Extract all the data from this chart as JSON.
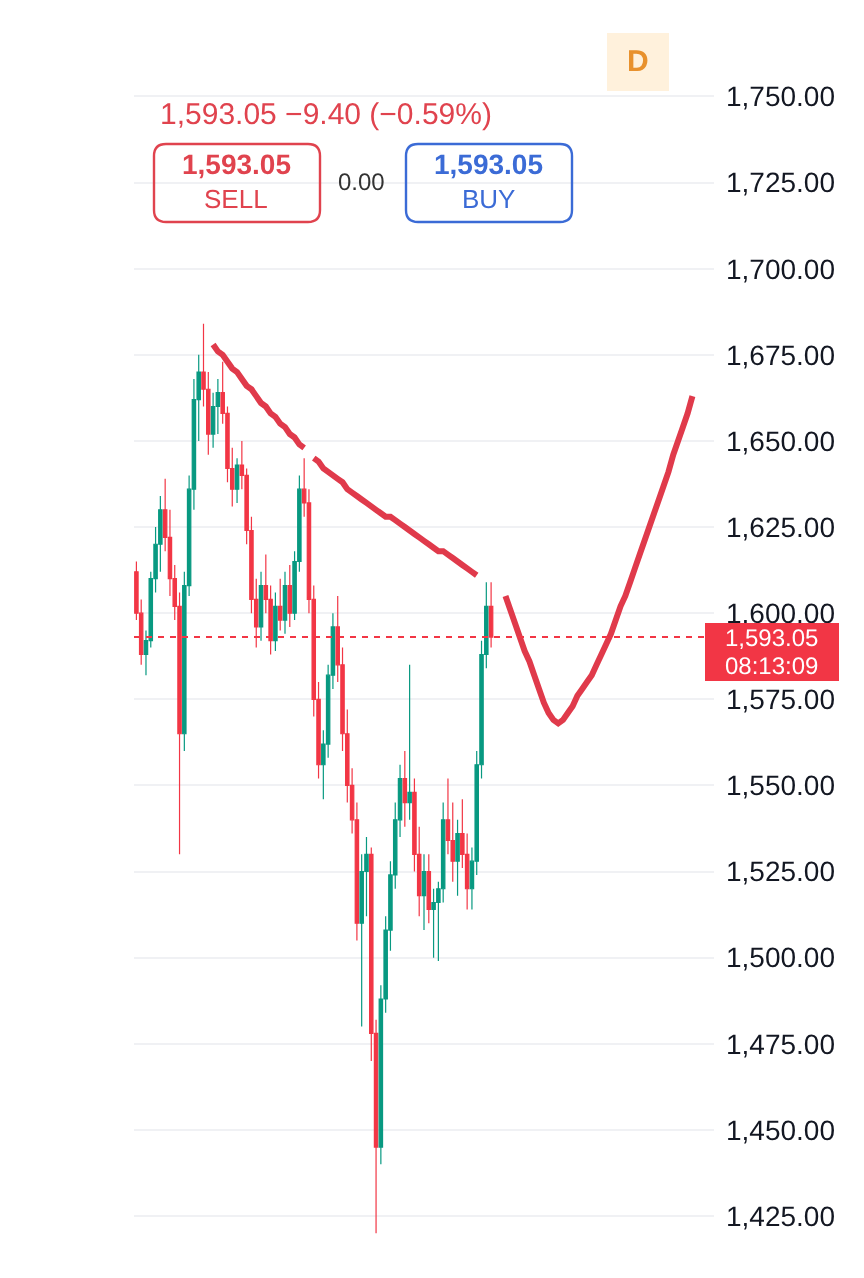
{
  "chart_data": {
    "type": "candlestick",
    "categories": [
      null,
      null,
      null,
      null,
      null,
      null,
      null,
      null,
      null,
      null,
      null,
      null,
      null,
      null,
      null,
      null,
      null,
      null,
      null,
      null,
      null,
      null,
      null,
      null,
      null,
      null,
      null,
      null,
      null,
      null,
      null,
      null,
      null,
      null,
      null,
      null,
      null,
      null,
      null,
      null,
      null,
      null,
      null,
      null,
      null,
      null,
      null,
      null,
      null,
      null,
      null,
      null,
      null,
      null,
      null,
      null,
      null,
      null,
      null,
      null,
      null,
      null,
      null,
      null,
      null,
      null,
      null,
      null,
      null,
      null,
      null,
      null,
      null,
      null,
      null,
      null,
      null,
      null,
      null,
      null,
      null,
      null,
      null,
      null,
      null,
      null,
      null,
      null,
      null,
      null,
      null,
      null,
      null,
      null,
      null,
      null,
      null,
      null,
      null,
      null,
      null,
      null,
      null,
      null,
      null,
      null,
      null,
      null,
      null,
      null,
      null,
      null,
      null,
      null,
      null,
      null,
      null,
      null,
      null,
      null,
      null
    ],
    "ohlc": [
      [
        1612,
        1615,
        1598,
        1600
      ],
      [
        1600,
        1604,
        1585,
        1588
      ],
      [
        1588,
        1595,
        1582,
        1592
      ],
      [
        1592,
        1612,
        1590,
        1610
      ],
      [
        1610,
        1625,
        1606,
        1620
      ],
      [
        1620,
        1634,
        1612,
        1630
      ],
      [
        1630,
        1639,
        1618,
        1622
      ],
      [
        1622,
        1630,
        1605,
        1610
      ],
      [
        1610,
        1614,
        1598,
        1602
      ],
      [
        1602,
        1606,
        1530,
        1565
      ],
      [
        1565,
        1612,
        1560,
        1608
      ],
      [
        1608,
        1640,
        1605,
        1636
      ],
      [
        1636,
        1668,
        1630,
        1662
      ],
      [
        1662,
        1675,
        1650,
        1670
      ],
      [
        1670,
        1684,
        1660,
        1665
      ],
      [
        1665,
        1670,
        1646,
        1652
      ],
      [
        1652,
        1664,
        1648,
        1660
      ],
      [
        1660,
        1668,
        1652,
        1664
      ],
      [
        1664,
        1673,
        1655,
        1658
      ],
      [
        1658,
        1660,
        1638,
        1642
      ],
      [
        1642,
        1648,
        1631,
        1636
      ],
      [
        1636,
        1645,
        1632,
        1643
      ],
      [
        1643,
        1650,
        1636,
        1640
      ],
      [
        1640,
        1642,
        1620,
        1624
      ],
      [
        1624,
        1628,
        1600,
        1604
      ],
      [
        1604,
        1610,
        1590,
        1596
      ],
      [
        1596,
        1612,
        1592,
        1608
      ],
      [
        1608,
        1617,
        1600,
        1604
      ],
      [
        1604,
        1608,
        1588,
        1592
      ],
      [
        1592,
        1606,
        1589,
        1602
      ],
      [
        1602,
        1610,
        1595,
        1598
      ],
      [
        1598,
        1612,
        1594,
        1608
      ],
      [
        1608,
        1614,
        1596,
        1600
      ],
      [
        1600,
        1618,
        1598,
        1615
      ],
      [
        1615,
        1640,
        1612,
        1636
      ],
      [
        1636,
        1645,
        1628,
        1632
      ],
      [
        1632,
        1636,
        1600,
        1604
      ],
      [
        1604,
        1608,
        1570,
        1575
      ],
      [
        1575,
        1580,
        1552,
        1556
      ],
      [
        1556,
        1566,
        1546,
        1562
      ],
      [
        1562,
        1585,
        1558,
        1582
      ],
      [
        1582,
        1600,
        1578,
        1596
      ],
      [
        1596,
        1605,
        1580,
        1585
      ],
      [
        1585,
        1590,
        1560,
        1565
      ],
      [
        1565,
        1572,
        1545,
        1550
      ],
      [
        1550,
        1555,
        1536,
        1540
      ],
      [
        1540,
        1545,
        1505,
        1510
      ],
      [
        1510,
        1530,
        1480,
        1525
      ],
      [
        1525,
        1535,
        1512,
        1530
      ],
      [
        1530,
        1532,
        1470,
        1478
      ],
      [
        1478,
        1482,
        1420,
        1445
      ],
      [
        1445,
        1492,
        1440,
        1488
      ],
      [
        1488,
        1512,
        1484,
        1508
      ],
      [
        1508,
        1528,
        1502,
        1524
      ],
      [
        1524,
        1545,
        1520,
        1540
      ],
      [
        1540,
        1556,
        1535,
        1552
      ],
      [
        1552,
        1560,
        1538,
        1545
      ],
      [
        1545,
        1585,
        1540,
        1548
      ],
      [
        1548,
        1552,
        1525,
        1530
      ],
      [
        1530,
        1538,
        1512,
        1518
      ],
      [
        1518,
        1530,
        1508,
        1525
      ],
      [
        1525,
        1530,
        1510,
        1514
      ],
      [
        1514,
        1520,
        1500,
        1516
      ],
      [
        1516,
        1522,
        1499,
        1520
      ],
      [
        1520,
        1545,
        1516,
        1540
      ],
      [
        1540,
        1552,
        1530,
        1534
      ],
      [
        1534,
        1545,
        1522,
        1528
      ],
      [
        1528,
        1540,
        1518,
        1536
      ],
      [
        1536,
        1546,
        1526,
        1530
      ],
      [
        1530,
        1536,
        1514,
        1520
      ],
      [
        1520,
        1532,
        1514,
        1528
      ],
      [
        1528,
        1560,
        1524,
        1556
      ],
      [
        1556,
        1592,
        1552,
        1588
      ],
      [
        1588,
        1609,
        1584,
        1602
      ],
      [
        1602,
        1609,
        1590,
        1593.05
      ],
      null,
      null,
      null,
      null,
      null,
      null,
      null,
      null,
      null,
      null,
      null,
      null,
      null,
      null,
      null,
      null,
      null,
      null,
      null,
      null,
      null,
      null,
      null,
      null,
      null,
      null,
      null,
      null,
      null,
      null,
      null,
      null,
      null,
      null,
      null,
      null,
      null,
      null,
      null,
      null,
      null,
      null,
      null,
      null,
      null,
      null
    ],
    "colors": [
      "#f23645",
      "#f23645",
      "#089981",
      "#089981",
      "#089981",
      "#089981",
      "#f23645",
      "#f23645",
      "#f23645",
      "#f23645",
      "#089981",
      "#089981",
      "#089981",
      "#089981",
      "#f23645",
      "#f23645",
      "#089981",
      "#089981",
      "#f23645",
      "#f23645",
      "#f23645",
      "#089981",
      "#f23645",
      "#f23645",
      "#f23645",
      "#f23645",
      "#089981",
      "#f23645",
      "#f23645",
      "#089981",
      "#f23645",
      "#089981",
      "#f23645",
      "#089981",
      "#089981",
      "#f23645",
      "#f23645",
      "#f23645",
      "#f23645",
      "#089981",
      "#089981",
      "#089981",
      "#f23645",
      "#f23645",
      "#f23645",
      "#f23645",
      "#f23645",
      "#089981",
      "#089981",
      "#f23645",
      "#f23645",
      "#089981",
      "#089981",
      "#089981",
      "#089981",
      "#089981",
      "#f23645",
      "#089981",
      "#f23645",
      "#f23645",
      "#089981",
      "#f23645",
      "#089981",
      "#089981",
      "#089981",
      "#f23645",
      "#f23645",
      "#089981",
      "#f23645",
      "#f23645",
      "#089981",
      "#089981",
      "#089981",
      "#089981",
      "#f23645",
      null,
      null,
      null,
      null,
      null,
      null,
      null,
      null,
      null,
      null,
      null,
      null,
      null,
      null,
      null,
      null,
      null,
      null,
      null,
      null,
      null,
      null,
      null,
      null,
      null,
      null,
      null,
      null,
      null,
      null,
      null,
      null,
      null,
      null,
      null,
      null,
      null,
      null,
      null,
      null,
      null,
      null,
      null,
      null,
      null,
      null
    ],
    "series": [
      {
        "type": "line",
        "color": "#e03a4b",
        "values": [
          null,
          null,
          null,
          null,
          null,
          null,
          null,
          null,
          null,
          null,
          null,
          null,
          null,
          null,
          null,
          null,
          1678,
          1676,
          1675,
          1673,
          1671,
          1670,
          1668,
          1666,
          1665,
          1663,
          1661,
          1660,
          1658,
          1657,
          1655,
          1654,
          1652,
          1651,
          1649,
          1648,
          null,
          1645,
          1644,
          1642,
          1641,
          1640,
          1639,
          1638,
          1636,
          1635,
          1634,
          1633,
          1632,
          1631,
          1630,
          1629,
          1628,
          1628,
          1627,
          1626,
          1625,
          1624,
          1623,
          1622,
          1621,
          1620,
          1619,
          1618,
          1618,
          1617,
          1616,
          1615,
          1614,
          1613,
          1612,
          1611,
          null,
          null,
          null,
          null,
          null,
          null,
          null,
          null,
          null,
          null,
          null,
          null,
          null,
          null,
          null,
          null,
          null,
          null,
          null,
          null,
          null,
          null,
          null,
          null,
          null,
          null,
          null,
          null,
          null,
          null,
          null,
          null,
          null,
          null,
          null,
          null,
          null,
          null,
          null,
          null,
          null,
          null,
          null,
          null,
          null,
          null,
          null,
          null,
          null
        ]
      },
      {
        "type": "line",
        "color": "#e03a4b",
        "values": [
          null,
          null,
          null,
          null,
          null,
          null,
          null,
          null,
          null,
          null,
          null,
          null,
          null,
          null,
          null,
          null,
          null,
          null,
          null,
          null,
          null,
          null,
          null,
          null,
          null,
          null,
          null,
          null,
          null,
          null,
          null,
          null,
          null,
          null,
          null,
          null,
          null,
          null,
          null,
          null,
          null,
          null,
          null,
          null,
          null,
          null,
          null,
          null,
          null,
          null,
          null,
          null,
          null,
          null,
          null,
          null,
          null,
          null,
          null,
          null,
          null,
          null,
          null,
          null,
          null,
          null,
          null,
          null,
          null,
          null,
          null,
          null,
          null,
          null,
          null,
          null,
          null,
          1605,
          1601,
          1597,
          1593,
          1589,
          1586,
          1582,
          1578,
          1574,
          1571,
          1569,
          1568,
          1569,
          1571,
          1573,
          1576,
          1578,
          1580,
          1582,
          1585,
          1588,
          1591,
          1594,
          1598,
          1602,
          1605,
          1609,
          1613,
          1617,
          1621,
          1625,
          1629,
          1633,
          1637,
          1641,
          1646,
          1650,
          1654,
          1658,
          1663,
          null,
          null,
          null,
          null
        ]
      }
    ],
    "ylim": [
      1407,
      1778
    ],
    "yticks": [
      {
        "value": 1425,
        "label": "1,425.00"
      },
      {
        "value": 1450,
        "label": "1,450.00"
      },
      {
        "value": 1475,
        "label": "1,475.00"
      },
      {
        "value": 1500,
        "label": "1,500.00"
      },
      {
        "value": 1525,
        "label": "1,525.00"
      },
      {
        "value": 1550,
        "label": "1,550.00"
      },
      {
        "value": 1575,
        "label": "1,575.00"
      },
      {
        "value": 1600,
        "label": "1,600.00"
      },
      {
        "value": 1625,
        "label": "1,625.00"
      },
      {
        "value": 1650,
        "label": "1,650.00"
      },
      {
        "value": 1675,
        "label": "1,675.00"
      },
      {
        "value": 1700,
        "label": "1,700.00"
      },
      {
        "value": 1725,
        "label": "1,725.00"
      },
      {
        "value": 1750,
        "label": "1,750.00"
      }
    ],
    "ref_lines": [
      {
        "axis": "y",
        "value": 1593.05,
        "label": "1,593.05",
        "color": "#f23645",
        "line_style": "dotted"
      }
    ],
    "annotations": [
      "1,593.05 −9.40 (−0.59%)",
      "1,593.05",
      "SELL",
      "0.00",
      "1,593.05",
      "BUY",
      "D",
      "08:13:09"
    ],
    "grid": "y",
    "tick_labels": "y"
  }
}
